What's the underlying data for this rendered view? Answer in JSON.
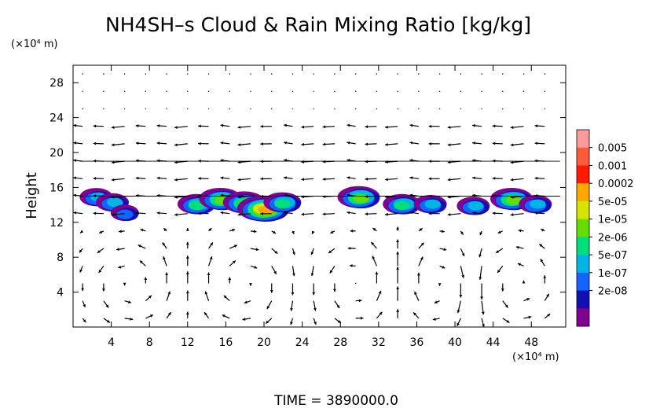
{
  "chart_data": {
    "type": "heatmap",
    "title": "NH4SH–s Cloud & Rain Mixing Ratio [kg/kg]",
    "ylabel": "Height",
    "y_unit": "(×10⁴ m)",
    "x_unit": "(×10⁴ m)",
    "xlim": [
      0,
      51.6
    ],
    "ylim": [
      0,
      30
    ],
    "x_ticks": [
      "4",
      "8",
      "12",
      "16",
      "20",
      "24",
      "28",
      "32",
      "36",
      "40",
      "44",
      "48"
    ],
    "y_ticks": [
      "4",
      "8",
      "12",
      "16",
      "20",
      "24",
      "28"
    ],
    "x_tick_values": [
      4,
      8,
      12,
      16,
      20,
      24,
      28,
      32,
      36,
      40,
      44,
      48
    ],
    "y_tick_values": [
      4,
      8,
      12,
      16,
      20,
      24,
      28
    ],
    "legend": {
      "placement": "right",
      "levels": [
        "0.005",
        "0.001",
        "0.0002",
        "5e-05",
        "1e-05",
        "2e-06",
        "5e-07",
        "1e-07",
        "2e-08"
      ],
      "colors": [
        "#ff9a9a",
        "#ff5a3c",
        "#ff1a00",
        "#ffa800",
        "#d8e400",
        "#66dd00",
        "#00e07a",
        "#00b4e6",
        "#1464ff",
        "#1010b4",
        "#800090"
      ]
    },
    "cloud_blobs": [
      {
        "x": 2.5,
        "y": 14.8,
        "level": 3
      },
      {
        "x": 4.2,
        "y": 14.2,
        "level": 3
      },
      {
        "x": 5.5,
        "y": 13.0,
        "level": 2
      },
      {
        "x": 13.0,
        "y": 14.0,
        "level": 4
      },
      {
        "x": 15.5,
        "y": 14.6,
        "level": 5
      },
      {
        "x": 18.0,
        "y": 14.2,
        "level": 5
      },
      {
        "x": 20.0,
        "y": 13.5,
        "level": 7
      },
      {
        "x": 22.0,
        "y": 14.2,
        "level": 4
      },
      {
        "x": 30.0,
        "y": 14.8,
        "level": 5
      },
      {
        "x": 34.5,
        "y": 14.0,
        "level": 4
      },
      {
        "x": 37.5,
        "y": 14.0,
        "level": 3
      },
      {
        "x": 42.0,
        "y": 13.8,
        "level": 3
      },
      {
        "x": 46.0,
        "y": 14.6,
        "level": 5
      },
      {
        "x": 48.5,
        "y": 14.0,
        "level": 3
      }
    ]
  },
  "footer": {
    "time_label": "TIME  =  3890000.0"
  }
}
